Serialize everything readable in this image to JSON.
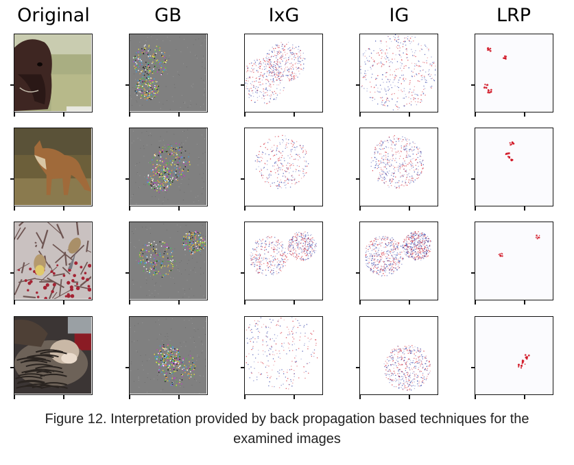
{
  "figure": {
    "columns": [
      {
        "id": "original",
        "title": "Original"
      },
      {
        "id": "gb",
        "title": "GB"
      },
      {
        "id": "ixg",
        "title": "IxG"
      },
      {
        "id": "ig",
        "title": "IG"
      },
      {
        "id": "lrp",
        "title": "LRP"
      }
    ],
    "rows": [
      {
        "id": "horse",
        "image": "horse-photo"
      },
      {
        "id": "fox",
        "image": "fox-photo"
      },
      {
        "id": "birds",
        "image": "birds-photo"
      },
      {
        "id": "cats",
        "image": "cats-photo"
      }
    ],
    "colors": {
      "gb_background": "#808080",
      "heat_positive": "#d01020",
      "heat_negative": "#2030a0",
      "axes": "#111111"
    }
  },
  "caption": {
    "line1": "Figure 12. Interpretation provided by back propagation based techniques for the",
    "line2": "examined images"
  }
}
